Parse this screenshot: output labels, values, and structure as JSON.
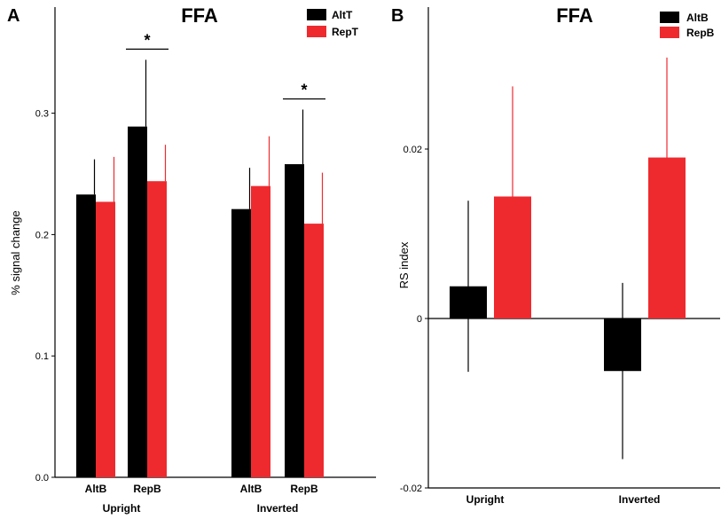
{
  "chart_data": [
    {
      "type": "bar",
      "panel_label": "A",
      "title": "FFA",
      "ylabel": "% signal change",
      "xlabel": "",
      "ylim": [
        0,
        0.35
      ],
      "yticks": [
        "0.0",
        "0.1",
        "0.2",
        "0.3"
      ],
      "ytick_values": [
        0,
        0.1,
        0.2,
        0.3
      ],
      "groups": [
        {
          "label": "Upright",
          "categories": [
            "AltB",
            "RepB"
          ]
        },
        {
          "label": "Inverted",
          "categories": [
            "AltB",
            "RepB"
          ]
        }
      ],
      "series": [
        {
          "name": "AltT",
          "color": "#000000",
          "values": [
            0.233,
            0.289,
            0.221,
            0.258
          ],
          "errors": [
            0.029,
            0.055,
            0.034,
            0.045
          ]
        },
        {
          "name": "RepT",
          "color": "#ee2a2f",
          "values": [
            0.227,
            0.244,
            0.24,
            0.209
          ],
          "errors": [
            0.037,
            0.03,
            0.041,
            0.042
          ]
        }
      ],
      "significance": [
        {
          "group_index": 0,
          "category_index": 1,
          "label": "*"
        },
        {
          "group_index": 1,
          "category_index": 1,
          "label": "*"
        }
      ],
      "legend_position": "top-right",
      "grid": false
    },
    {
      "type": "bar",
      "panel_label": "B",
      "title": "FFA",
      "ylabel": "RS index",
      "xlabel": "",
      "ylim": [
        -0.02,
        0.035
      ],
      "yticks": [
        "-0.02",
        "0",
        "0.02"
      ],
      "ytick_values": [
        -0.02,
        0,
        0.02
      ],
      "categories": [
        "Upright",
        "Inverted"
      ],
      "series": [
        {
          "name": "AltB",
          "color": "#000000",
          "values": [
            0.0038,
            -0.0062
          ],
          "errors": [
            0.0101,
            0.0104
          ]
        },
        {
          "name": "RepB",
          "color": "#ee2a2f",
          "values": [
            0.0144,
            0.019
          ],
          "errors": [
            0.013,
            0.0118
          ]
        }
      ],
      "legend_position": "top-right",
      "grid": false
    }
  ]
}
